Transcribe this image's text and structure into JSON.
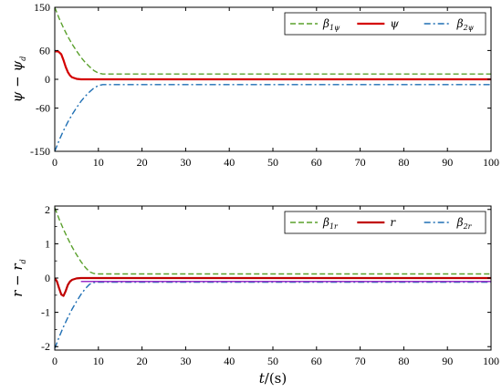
{
  "chart_data": [
    {
      "type": "line",
      "xlabel_main": "t",
      "xlabel_unit": "/(s)",
      "ylabel_main": "ψ − ψ",
      "ylabel_sub": "d",
      "xlim": [
        0,
        100
      ],
      "ylim": [
        -150,
        150
      ],
      "xticks": [
        0,
        10,
        20,
        30,
        40,
        50,
        60,
        70,
        80,
        90,
        100
      ],
      "yticks": [
        -150,
        -60,
        0,
        60,
        150
      ],
      "ytick_labels": [
        "-150",
        "-60",
        "0",
        "60",
        "150"
      ],
      "legend_position": "top-right",
      "grid": false,
      "series": [
        {
          "name": "β",
          "name_sub": "1ψ",
          "style": "dashed",
          "color": "#5aa02c",
          "x": [
            0,
            1,
            2,
            3,
            4,
            5,
            6,
            7,
            8,
            9,
            10,
            11,
            12,
            20,
            40,
            60,
            80,
            100
          ],
          "y": [
            150,
            127,
            107,
            89,
            73,
            59,
            46,
            35,
            26,
            18,
            13,
            11,
            11,
            11,
            11,
            11,
            11,
            11
          ]
        },
        {
          "name": "ψ",
          "name_sub": "",
          "style": "solid",
          "color": "#d40000",
          "x": [
            0,
            0.8,
            1.5,
            2,
            2.5,
            3,
            3.5,
            4,
            5,
            6,
            8,
            10,
            20,
            40,
            60,
            80,
            100
          ],
          "y": [
            58,
            58,
            52,
            40,
            26,
            15,
            8,
            4,
            1,
            0,
            0,
            0,
            0,
            0,
            0,
            0,
            0
          ]
        },
        {
          "name": "β",
          "name_sub": "2ψ",
          "style": "dashdot",
          "color": "#1f6fb4",
          "x": [
            0,
            1,
            2,
            3,
            4,
            5,
            6,
            7,
            8,
            9,
            10,
            11,
            12,
            20,
            40,
            60,
            80,
            100
          ],
          "y": [
            -150,
            -127,
            -107,
            -89,
            -73,
            -59,
            -46,
            -35,
            -26,
            -18,
            -13,
            -11,
            -11,
            -11,
            -11,
            -11,
            -11,
            -11
          ]
        }
      ]
    },
    {
      "type": "line",
      "xlabel_main": "t",
      "xlabel_unit": "/(s)",
      "ylabel_main": "r − r",
      "ylabel_sub": "d",
      "xlim": [
        0,
        100
      ],
      "ylim": [
        -2.1,
        2.1
      ],
      "xticks": [
        0,
        10,
        20,
        30,
        40,
        50,
        60,
        70,
        80,
        90,
        100
      ],
      "yticks": [
        -2,
        -1,
        0,
        1,
        2
      ],
      "ytick_labels": [
        "-2",
        "-1",
        "0",
        "1",
        "2"
      ],
      "yminor_ticks": [
        -2,
        -1.5,
        -1,
        -0.5,
        0,
        0.5,
        1,
        1.5,
        2
      ],
      "legend_position": "top-right",
      "grid": false,
      "series": [
        {
          "name": "β",
          "name_sub": "1r",
          "style": "dashed",
          "color": "#5aa02c",
          "x": [
            0,
            1,
            2,
            3,
            4,
            5,
            6,
            7,
            8,
            9,
            10,
            20,
            40,
            60,
            80,
            100
          ],
          "y": [
            2.05,
            1.72,
            1.42,
            1.15,
            0.9,
            0.68,
            0.48,
            0.31,
            0.18,
            0.13,
            0.12,
            0.12,
            0.12,
            0.12,
            0.12,
            0.12
          ]
        },
        {
          "name": "r",
          "name_sub": "",
          "style": "solid",
          "color": "#c00000",
          "x": [
            0,
            0.5,
            1,
            1.5,
            2,
            2.5,
            3,
            3.5,
            4,
            5,
            6,
            8,
            10,
            20,
            40,
            60,
            80,
            100
          ],
          "y": [
            0,
            -0.1,
            -0.3,
            -0.48,
            -0.52,
            -0.38,
            -0.2,
            -0.1,
            -0.05,
            -0.01,
            0,
            0,
            0,
            0,
            0,
            0,
            0,
            0
          ]
        },
        {
          "name": "β",
          "name_sub": "2r",
          "style": "dashdot",
          "color": "#1f6fb4",
          "x": [
            0,
            1,
            2,
            3,
            4,
            5,
            6,
            7,
            8,
            9,
            10,
            20,
            40,
            60,
            80,
            100
          ],
          "y": [
            -2.05,
            -1.72,
            -1.42,
            -1.15,
            -0.9,
            -0.68,
            -0.48,
            -0.31,
            -0.18,
            -0.13,
            -0.12,
            -0.12,
            -0.12,
            -0.12,
            -0.12,
            -0.12
          ]
        },
        {
          "name": "",
          "name_sub": "",
          "style": "solid",
          "color": "#9b30c8",
          "x": [
            6,
            10,
            20,
            40,
            60,
            80,
            100
          ],
          "y": [
            -0.1,
            -0.1,
            -0.1,
            -0.1,
            -0.1,
            -0.1,
            -0.1
          ]
        }
      ]
    }
  ]
}
